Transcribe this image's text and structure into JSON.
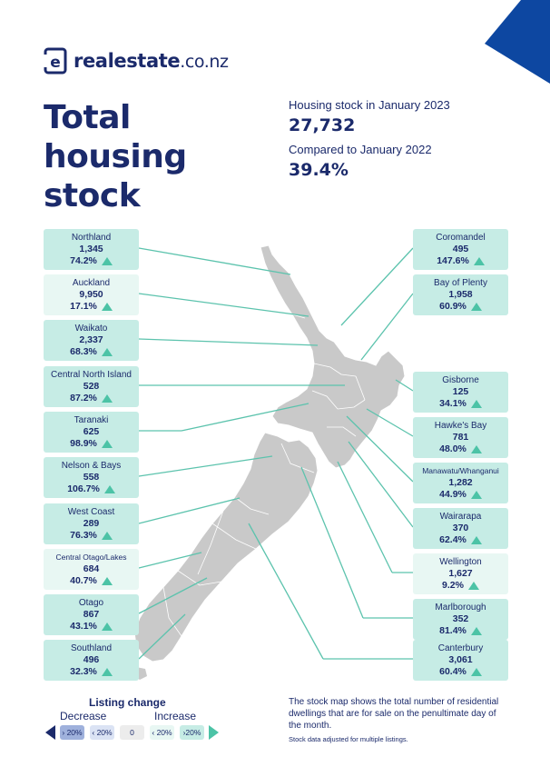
{
  "brand": {
    "logo_letter": "e",
    "name": "realestate",
    "tld": ".co.nz",
    "colors": {
      "navy": "#1b2a6b",
      "teal": "#4cc3a6",
      "corner": "#0d47a1"
    }
  },
  "title_lines": [
    "Total",
    "housing",
    "stock"
  ],
  "summary": {
    "stock_label": "Housing stock in January 2023",
    "stock_value": "27,732",
    "compare_label": "Compared to January 2022",
    "compare_value": "39.4%"
  },
  "regions_left": [
    {
      "name": "Northland",
      "count": "1,345",
      "change": "74.2%",
      "direction": "up"
    },
    {
      "name": "Auckland",
      "count": "9,950",
      "change": "17.1%",
      "direction": "up"
    },
    {
      "name": "Waikato",
      "count": "2,337",
      "change": "68.3%",
      "direction": "up"
    },
    {
      "name": "Central North Island",
      "count": "528",
      "change": "87.2%",
      "direction": "up"
    },
    {
      "name": "Taranaki",
      "count": "625",
      "change": "98.9%",
      "direction": "up"
    },
    {
      "name": "Nelson & Bays",
      "count": "558",
      "change": "106.7%",
      "direction": "up"
    },
    {
      "name": "West Coast",
      "count": "289",
      "change": "76.3%",
      "direction": "up"
    },
    {
      "name": "Central Otago/Lakes",
      "count": "684",
      "change": "40.7%",
      "direction": "up"
    },
    {
      "name": "Otago",
      "count": "867",
      "change": "43.1%",
      "direction": "up"
    },
    {
      "name": "Southland",
      "count": "496",
      "change": "32.3%",
      "direction": "up"
    }
  ],
  "regions_right": [
    {
      "name": "Coromandel",
      "count": "495",
      "change": "147.6%",
      "direction": "up"
    },
    {
      "name": "Bay of Plenty",
      "count": "1,958",
      "change": "60.9%",
      "direction": "up"
    },
    {
      "name": "Gisborne",
      "count": "125",
      "change": "34.1%",
      "direction": "up"
    },
    {
      "name": "Hawke's Bay",
      "count": "781",
      "change": "48.0%",
      "direction": "up"
    },
    {
      "name": "Manawatu/Whanganui",
      "count": "1,282",
      "change": "44.9%",
      "direction": "up"
    },
    {
      "name": "Wairarapa",
      "count": "370",
      "change": "62.4%",
      "direction": "up"
    },
    {
      "name": "Wellington",
      "count": "1,627",
      "change": "9.2%",
      "direction": "up"
    },
    {
      "name": "Marlborough",
      "count": "352",
      "change": "81.4%",
      "direction": "up"
    },
    {
      "name": "Canterbury",
      "count": "3,061",
      "change": "60.4%",
      "direction": "up"
    }
  ],
  "legend": {
    "title": "Listing change",
    "decrease": "Decrease",
    "increase": "Increase",
    "bins": [
      "› 20%",
      "‹ 20%",
      "0",
      "‹ 20%",
      "›20%"
    ]
  },
  "note": "The stock map shows the total number of residential dwellings that are for sale on the penultimate day of the month.",
  "note_small": "Stock data adjusted for multiple listings."
}
